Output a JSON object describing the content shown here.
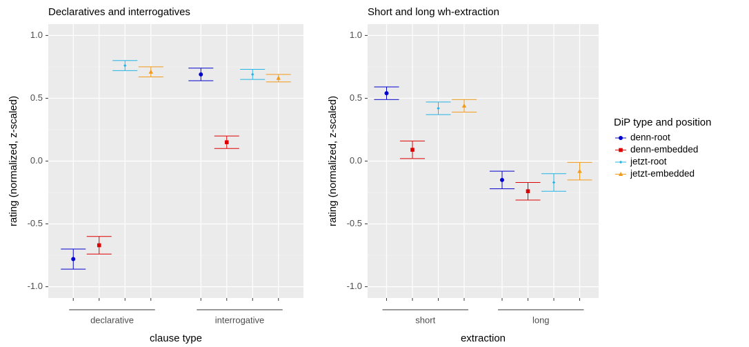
{
  "chart_data": [
    {
      "type": "errorbar",
      "title": "Declaratives and interrogatives",
      "x_label": "clause type",
      "y_label": "rating (normalized, z-scaled)",
      "categories": [
        "declarative",
        "interrogative"
      ],
      "ylim": [
        -1.09,
        1.09
      ],
      "yticks": [
        {
          "value": -1,
          "label": "-1.0"
        },
        {
          "value": -0.5,
          "label": "-0.5"
        },
        {
          "value": 0,
          "label": "0.0"
        },
        {
          "value": 0.5,
          "label": "0.5"
        },
        {
          "value": 1,
          "label": "1.0"
        }
      ],
      "grid": true,
      "series": [
        {
          "color": "#0000cc",
          "marker": "circle",
          "values": [
            -0.78,
            0.69
          ],
          "errors": [
            0.08,
            0.05
          ]
        },
        {
          "color": "#dd0000",
          "marker": "square",
          "values": [
            -0.67,
            0.15
          ],
          "errors": [
            0.07,
            0.05
          ]
        },
        {
          "color": "#22b4e6",
          "marker": "diamond",
          "values": [
            0.76,
            0.69
          ],
          "errors": [
            0.04,
            0.04
          ]
        },
        {
          "color": "#f29a1a",
          "marker": "triangle",
          "values": [
            0.71,
            0.66
          ],
          "errors": [
            0.04,
            0.03
          ]
        }
      ]
    },
    {
      "type": "errorbar",
      "title": "Short and long wh-extraction",
      "x_label": "extraction",
      "y_label": "rating (normalized, z-scaled)",
      "categories": [
        "short",
        "long"
      ],
      "ylim": [
        -1.09,
        1.09
      ],
      "yticks": [
        {
          "value": -1,
          "label": "-1.0"
        },
        {
          "value": -0.5,
          "label": "-0.5"
        },
        {
          "value": 0,
          "label": "0.0"
        },
        {
          "value": 0.5,
          "label": "0.5"
        },
        {
          "value": 1,
          "label": "1.0"
        }
      ],
      "grid": true,
      "legend_title": "DiP type and position",
      "legend_position": "right",
      "series": [
        {
          "name": "denn-root",
          "color": "#0000cc",
          "marker": "circle",
          "values": [
            0.54,
            -0.15
          ],
          "errors": [
            0.05,
            0.07
          ]
        },
        {
          "name": "denn-embedded",
          "color": "#dd0000",
          "marker": "square",
          "values": [
            0.09,
            -0.24
          ],
          "errors": [
            0.07,
            0.07
          ]
        },
        {
          "name": "jetzt-root",
          "color": "#22b4e6",
          "marker": "diamond",
          "values": [
            0.42,
            -0.17
          ],
          "errors": [
            0.05,
            0.07
          ]
        },
        {
          "name": "jetzt-embedded",
          "color": "#f29a1a",
          "marker": "triangle",
          "values": [
            0.44,
            -0.08
          ],
          "errors": [
            0.05,
            0.07
          ]
        }
      ]
    }
  ]
}
